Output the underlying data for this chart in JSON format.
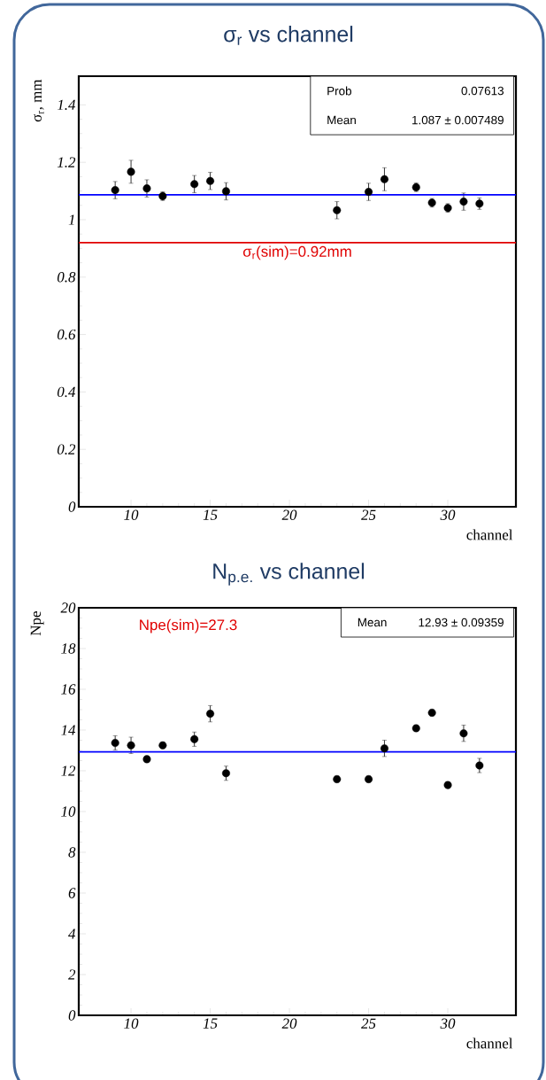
{
  "chart_data": [
    {
      "type": "scatter",
      "title": "σ$_{r}$ vs channel",
      "xlabel": "channel",
      "ylabel": "σ$_{r}$, mm",
      "x": [
        9,
        10,
        11,
        12,
        14,
        15,
        16,
        23,
        25,
        26,
        28,
        29,
        30,
        31,
        32
      ],
      "values": [
        1.103,
        1.167,
        1.109,
        1.082,
        1.124,
        1.135,
        1.099,
        1.033,
        1.097,
        1.141,
        1.113,
        1.059,
        1.041,
        1.063,
        1.056
      ],
      "errors": [
        0.03,
        0.04,
        0.03,
        0.015,
        0.03,
        0.03,
        0.03,
        0.03,
        0.03,
        0.04,
        0.015,
        0.015,
        0.015,
        0.03,
        0.02
      ],
      "color": "#000000",
      "marker": "circle",
      "xlim": [
        6.7,
        34.3
      ],
      "xticks": [
        10,
        15,
        20,
        25,
        30
      ],
      "ylim": [
        0,
        1.5
      ],
      "yticks": [
        0,
        0.2,
        0.4,
        0.6,
        0.8,
        1,
        1.2,
        1.4
      ],
      "ref_lines": [
        {
          "axis": "y",
          "value": 1.087,
          "color": "#0000ff"
        },
        {
          "axis": "y",
          "value": 0.92,
          "color": "#e00000",
          "label": "σ$_{r}$(sim)=0.92mm"
        }
      ],
      "annotations": [
        "Prob",
        "0.07613",
        "Mean",
        "1.087 ± 0.007489"
      ]
    },
    {
      "type": "scatter",
      "title": "N$_{p.e.}$ vs channel",
      "xlabel": "channel",
      "ylabel": "Npe",
      "x": [
        9,
        10,
        11,
        12,
        14,
        15,
        16,
        23,
        25,
        26,
        28,
        29,
        30,
        31,
        32
      ],
      "values": [
        13.37,
        13.25,
        12.57,
        13.25,
        13.55,
        14.8,
        11.88,
        11.59,
        11.59,
        13.1,
        14.09,
        14.85,
        11.3,
        13.84,
        12.26
      ],
      "errors": [
        0.35,
        0.4,
        0.15,
        0.15,
        0.35,
        0.4,
        0.35,
        0.15,
        0.15,
        0.4,
        0.15,
        0.15,
        0.15,
        0.4,
        0.35
      ],
      "color": "#000000",
      "marker": "circle",
      "xlim": [
        6.7,
        34.3
      ],
      "xticks": [
        10,
        15,
        20,
        25,
        30
      ],
      "ylim": [
        0,
        20
      ],
      "yticks": [
        0,
        2,
        4,
        6,
        8,
        10,
        12,
        14,
        16,
        18,
        20
      ],
      "ref_lines": [
        {
          "axis": "y",
          "value": 12.93,
          "color": "#0000ff"
        }
      ],
      "annotations": [
        "Npe(sim)=27.3",
        "Mean",
        "12.93 ± 0.09359"
      ]
    }
  ]
}
